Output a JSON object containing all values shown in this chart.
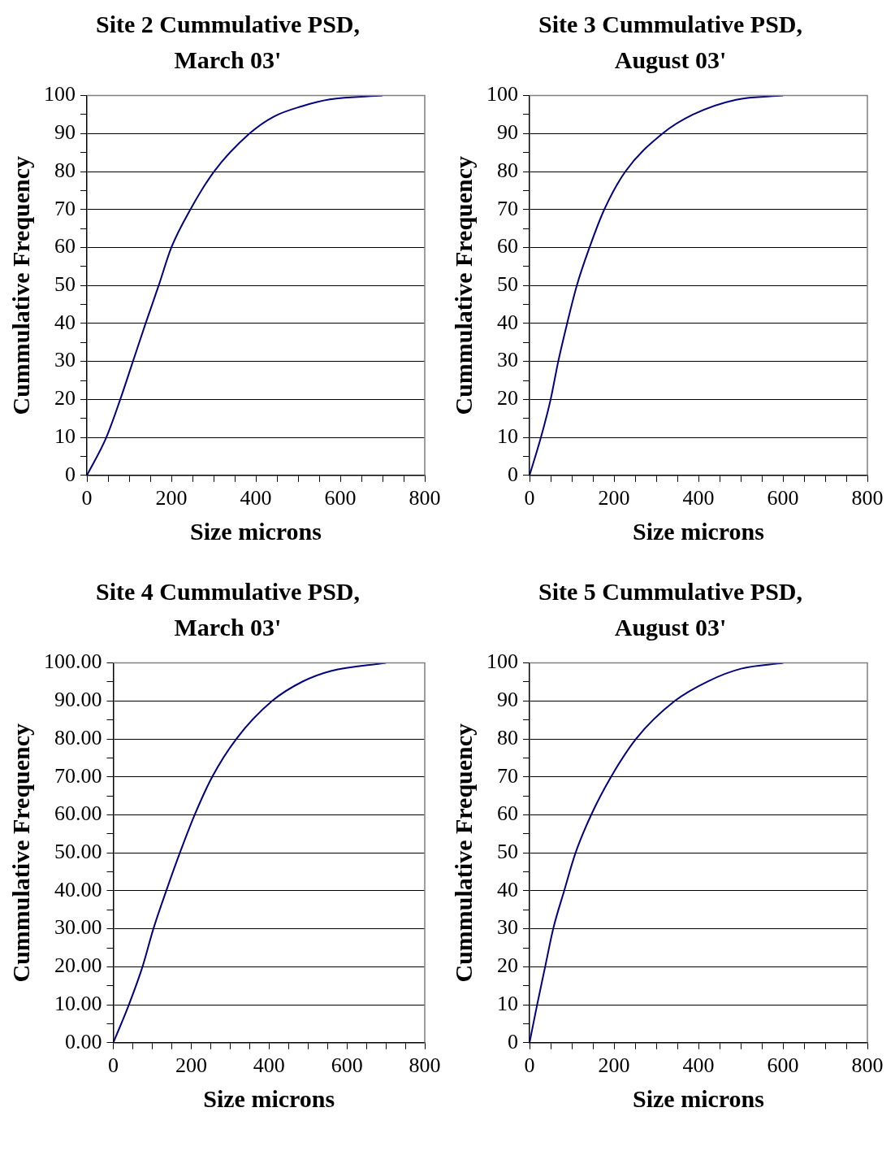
{
  "chart_data": [
    {
      "type": "line",
      "title": "Site 2 Cummulative PSD, March 03'",
      "xlabel": "Size microns",
      "ylabel": "Cummulative Frequency",
      "xlim": [
        0,
        800
      ],
      "ylim": [
        0,
        100
      ],
      "grid": "y",
      "legend": false,
      "marker": "none",
      "line_style": "solid",
      "xticks": [
        0,
        {
          "value": 50,
          "label": null
        },
        {
          "value": 100,
          "label": null
        },
        {
          "value": 150,
          "label": null
        },
        200,
        {
          "value": 250,
          "label": null
        },
        {
          "value": 300,
          "label": null
        },
        {
          "value": 350,
          "label": null
        },
        400,
        {
          "value": 450,
          "label": null
        },
        {
          "value": 500,
          "label": null
        },
        {
          "value": 550,
          "label": null
        },
        600,
        {
          "value": 650,
          "label": null
        },
        {
          "value": 700,
          "label": null
        },
        {
          "value": 750,
          "label": null
        },
        800
      ],
      "yticks": [
        0,
        {
          "value": 5,
          "label": null
        },
        10,
        {
          "value": 15,
          "label": null
        },
        20,
        {
          "value": 25,
          "label": null
        },
        30,
        {
          "value": 35,
          "label": null
        },
        40,
        {
          "value": 45,
          "label": null
        },
        50,
        {
          "value": 55,
          "label": null
        },
        60,
        {
          "value": 65,
          "label": null
        },
        70,
        {
          "value": 75,
          "label": null
        },
        80,
        {
          "value": 85,
          "label": null
        },
        90,
        {
          "value": 95,
          "label": null
        },
        100
      ],
      "series": [
        {
          "color": "#000080",
          "x": [
            0,
            46,
            79,
            109,
            139,
            170,
            200,
            245,
            301,
            385,
            443,
            509,
            575,
            700
          ],
          "values": [
            0,
            10,
            20,
            30,
            40,
            50,
            60,
            70,
            80,
            90,
            94.5,
            97.2,
            99,
            100
          ]
        }
      ]
    },
    {
      "type": "line",
      "title": "Site 3 Cummulative PSD, August 03'",
      "xlabel": "Size microns",
      "ylabel": "Cummulative Frequency",
      "xlim": [
        0,
        800
      ],
      "ylim": [
        0,
        100
      ],
      "grid": "y",
      "legend": false,
      "marker": "none",
      "line_style": "solid",
      "xticks": [
        0,
        {
          "value": 50,
          "label": null
        },
        {
          "value": 100,
          "label": null
        },
        {
          "value": 150,
          "label": null
        },
        200,
        {
          "value": 250,
          "label": null
        },
        {
          "value": 300,
          "label": null
        },
        {
          "value": 350,
          "label": null
        },
        400,
        {
          "value": 450,
          "label": null
        },
        {
          "value": 500,
          "label": null
        },
        {
          "value": 550,
          "label": null
        },
        600,
        {
          "value": 650,
          "label": null
        },
        {
          "value": 700,
          "label": null
        },
        {
          "value": 750,
          "label": null
        },
        800
      ],
      "yticks": [
        0,
        {
          "value": 5,
          "label": null
        },
        10,
        {
          "value": 15,
          "label": null
        },
        20,
        {
          "value": 25,
          "label": null
        },
        30,
        {
          "value": 35,
          "label": null
        },
        40,
        {
          "value": 45,
          "label": null
        },
        50,
        {
          "value": 55,
          "label": null
        },
        60,
        {
          "value": 65,
          "label": null
        },
        70,
        {
          "value": 75,
          "label": null
        },
        80,
        {
          "value": 85,
          "label": null
        },
        90,
        {
          "value": 95,
          "label": null
        },
        100
      ],
      "series": [
        {
          "color": "#000080",
          "x": [
            0,
            27,
            50,
            68,
            89,
            112,
            142,
            177,
            227,
            315,
            387,
            489,
            600
          ],
          "values": [
            0,
            10,
            20,
            30,
            40,
            50,
            60,
            70,
            80,
            90,
            95,
            98.9,
            100
          ]
        }
      ]
    },
    {
      "type": "line",
      "title": "Site 4 Cummulative PSD, March 03'",
      "xlabel": "Size microns",
      "ylabel": "Cummulative Frequency",
      "xlim": [
        0,
        800
      ],
      "ylim": [
        0,
        100
      ],
      "grid": "y",
      "legend": false,
      "marker": "none",
      "line_style": "solid",
      "xticks": [
        0,
        {
          "value": 50,
          "label": null
        },
        {
          "value": 100,
          "label": null
        },
        {
          "value": 150,
          "label": null
        },
        200,
        {
          "value": 250,
          "label": null
        },
        {
          "value": 300,
          "label": null
        },
        {
          "value": 350,
          "label": null
        },
        400,
        {
          "value": 450,
          "label": null
        },
        {
          "value": 500,
          "label": null
        },
        {
          "value": 550,
          "label": null
        },
        600,
        {
          "value": 650,
          "label": null
        },
        {
          "value": 700,
          "label": null
        },
        {
          "value": 750,
          "label": null
        },
        800
      ],
      "yticks": [
        {
          "value": 0,
          "label": "0.00"
        },
        {
          "value": 5,
          "label": null
        },
        {
          "value": 10,
          "label": "10.00"
        },
        {
          "value": 15,
          "label": null
        },
        {
          "value": 20,
          "label": "20.00"
        },
        {
          "value": 25,
          "label": null
        },
        {
          "value": 30,
          "label": "30.00"
        },
        {
          "value": 35,
          "label": null
        },
        {
          "value": 40,
          "label": "40.00"
        },
        {
          "value": 45,
          "label": null
        },
        {
          "value": 50,
          "label": "50.00"
        },
        {
          "value": 55,
          "label": null
        },
        {
          "value": 60,
          "label": "60.00"
        },
        {
          "value": 65,
          "label": null
        },
        {
          "value": 70,
          "label": "70.00"
        },
        {
          "value": 75,
          "label": null
        },
        {
          "value": 80,
          "label": "80.00"
        },
        {
          "value": 85,
          "label": null
        },
        {
          "value": 90,
          "label": "90.00"
        },
        {
          "value": 95,
          "label": null
        },
        {
          "value": 100,
          "label": "100.00"
        }
      ],
      "series": [
        {
          "color": "#000080",
          "x": [
            0,
            40,
            75,
            103,
            136,
            171,
            209,
            254,
            316,
            408,
            486,
            559,
            700
          ],
          "values": [
            0,
            10,
            20,
            30,
            40,
            50,
            60,
            70,
            80,
            90,
            95.1,
            97.9,
            100
          ]
        }
      ]
    },
    {
      "type": "line",
      "title": "Site 5 Cummulative PSD, August 03'",
      "xlabel": "Size microns",
      "ylabel": "Cummulative Frequency",
      "xlim": [
        0,
        800
      ],
      "ylim": [
        0,
        100
      ],
      "grid": "y",
      "legend": false,
      "marker": "none",
      "line_style": "solid",
      "xticks": [
        0,
        {
          "value": 50,
          "label": null
        },
        {
          "value": 100,
          "label": null
        },
        {
          "value": 150,
          "label": null
        },
        200,
        {
          "value": 250,
          "label": null
        },
        {
          "value": 300,
          "label": null
        },
        {
          "value": 350,
          "label": null
        },
        400,
        {
          "value": 450,
          "label": null
        },
        {
          "value": 500,
          "label": null
        },
        {
          "value": 550,
          "label": null
        },
        600,
        {
          "value": 650,
          "label": null
        },
        {
          "value": 700,
          "label": null
        },
        {
          "value": 750,
          "label": null
        },
        800
      ],
      "yticks": [
        0,
        {
          "value": 5,
          "label": null
        },
        10,
        {
          "value": 15,
          "label": null
        },
        20,
        {
          "value": 25,
          "label": null
        },
        30,
        {
          "value": 35,
          "label": null
        },
        40,
        {
          "value": 45,
          "label": null
        },
        50,
        {
          "value": 55,
          "label": null
        },
        60,
        {
          "value": 65,
          "label": null
        },
        70,
        {
          "value": 75,
          "label": null
        },
        80,
        {
          "value": 85,
          "label": null
        },
        90,
        {
          "value": 95,
          "label": null
        },
        100
      ],
      "series": [
        {
          "color": "#000080",
          "x": [
            0,
            18,
            37,
            56,
            82,
            109,
            146,
            193,
            252,
            344,
            425,
            501,
            601
          ],
          "values": [
            0,
            10,
            20,
            30,
            40,
            50,
            60,
            70,
            80,
            90,
            95.3,
            98.5,
            100
          ]
        }
      ]
    }
  ]
}
